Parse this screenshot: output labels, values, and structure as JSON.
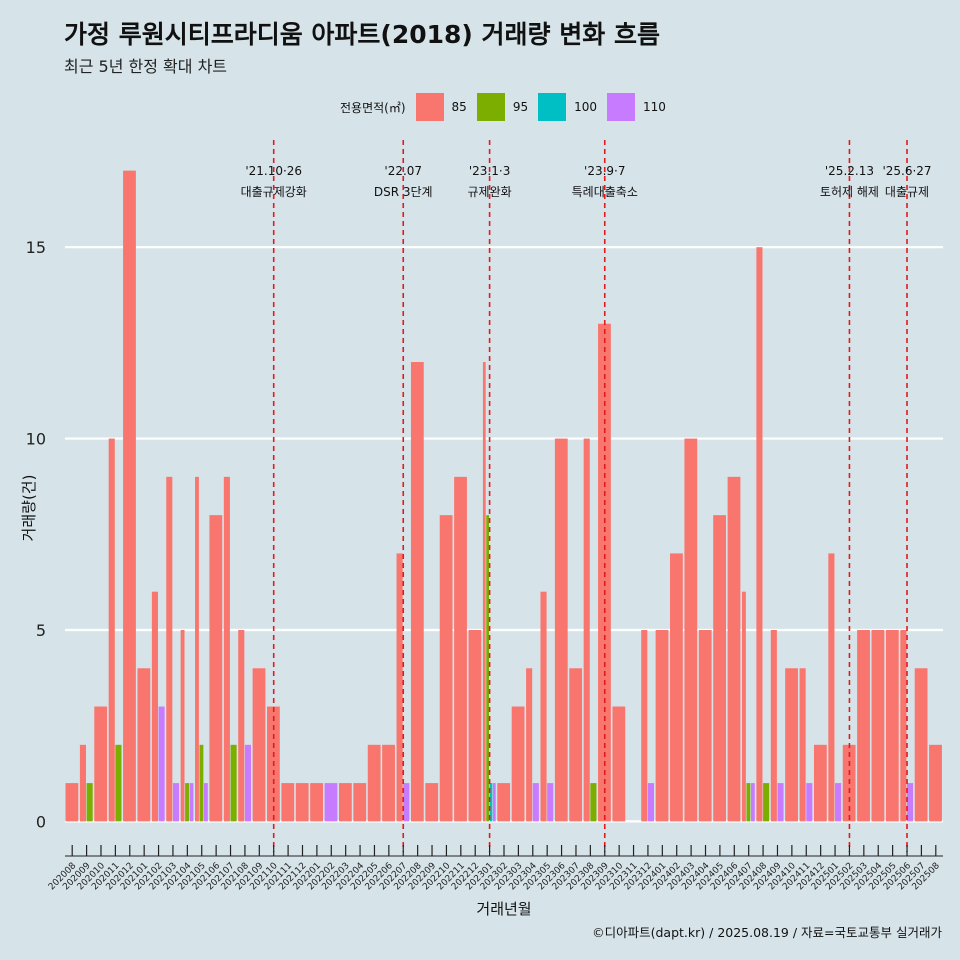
{
  "title": "가정 루원시티프라디움 아파트(2018) 거래량 변화 흐름",
  "subtitle": "최근 5년 한정 확대 차트",
  "caption": "©디아파트(dapt.kr) / 2025.08.19 / 자료=국토교통부 실거래가",
  "legend_title": "전용면적(㎡)",
  "chart_data": {
    "type": "bar",
    "xlabel": "거래년월",
    "ylabel": "거래량(건)",
    "ylim": [
      -0.8,
      17.8
    ],
    "yticks": [
      0,
      5,
      10,
      15
    ],
    "grid": true,
    "legend_position": "top",
    "series": [
      {
        "name": "85",
        "color": "#F8766D"
      },
      {
        "name": "95",
        "color": "#7CAE00"
      },
      {
        "name": "100",
        "color": "#00BFC4"
      },
      {
        "name": "110",
        "color": "#C77CFF"
      }
    ],
    "categories": [
      "202008",
      "202009",
      "202010",
      "202011",
      "202012",
      "202101",
      "202102",
      "202103",
      "202104",
      "202105",
      "202106",
      "202107",
      "202108",
      "202109",
      "202110",
      "202111",
      "202112",
      "202201",
      "202202",
      "202203",
      "202204",
      "202205",
      "202206",
      "202207",
      "202208",
      "202209",
      "202210",
      "202211",
      "202212",
      "202301",
      "202302",
      "202303",
      "202304",
      "202305",
      "202306",
      "202307",
      "202308",
      "202309",
      "202310",
      "202311",
      "202312",
      "202401",
      "202402",
      "202403",
      "202404",
      "202405",
      "202406",
      "202407",
      "202408",
      "202409",
      "202410",
      "202411",
      "202412",
      "202501",
      "202502",
      "202503",
      "202504",
      "202505",
      "202506",
      "202507",
      "202508"
    ],
    "data": [
      {
        "x": "202008",
        "values": {
          "85": 1
        }
      },
      {
        "x": "202009",
        "values": {
          "85": 2,
          "95": 1
        }
      },
      {
        "x": "202010",
        "values": {
          "85": 3
        }
      },
      {
        "x": "202011",
        "values": {
          "85": 10,
          "95": 2
        }
      },
      {
        "x": "202012",
        "values": {
          "85": 17
        }
      },
      {
        "x": "202101",
        "values": {
          "85": 4
        }
      },
      {
        "x": "202102",
        "values": {
          "85": 6,
          "110": 3
        }
      },
      {
        "x": "202103",
        "values": {
          "85": 9,
          "110": 1
        }
      },
      {
        "x": "202104",
        "values": {
          "85": 5,
          "95": 1,
          "110": 1
        }
      },
      {
        "x": "202105",
        "values": {
          "85": 9,
          "95": 2,
          "110": 1
        }
      },
      {
        "x": "202106",
        "values": {
          "85": 8
        }
      },
      {
        "x": "202107",
        "values": {
          "85": 9,
          "95": 2
        }
      },
      {
        "x": "202108",
        "values": {
          "85": 5,
          "110": 2
        }
      },
      {
        "x": "202109",
        "values": {
          "85": 4
        }
      },
      {
        "x": "202110",
        "values": {
          "85": 3
        }
      },
      {
        "x": "202111",
        "values": {
          "85": 1
        }
      },
      {
        "x": "202112",
        "values": {
          "85": 1
        }
      },
      {
        "x": "202201",
        "values": {
          "85": 1
        }
      },
      {
        "x": "202202",
        "values": {
          "110": 1
        }
      },
      {
        "x": "202203",
        "values": {
          "85": 1
        }
      },
      {
        "x": "202204",
        "values": {
          "85": 1
        }
      },
      {
        "x": "202205",
        "values": {
          "85": 2
        }
      },
      {
        "x": "202206",
        "values": {
          "85": 2
        }
      },
      {
        "x": "202207",
        "values": {
          "85": 7,
          "110": 1
        }
      },
      {
        "x": "202208",
        "values": {
          "85": 12
        }
      },
      {
        "x": "202209",
        "values": {
          "85": 1
        }
      },
      {
        "x": "202210",
        "values": {
          "85": 8
        }
      },
      {
        "x": "202211",
        "values": {
          "85": 9
        }
      },
      {
        "x": "202212",
        "values": {
          "85": 5
        }
      },
      {
        "x": "202301",
        "values": {
          "85": 12,
          "95": 8,
          "100": 1,
          "110": 1
        }
      },
      {
        "x": "202302",
        "values": {
          "85": 1
        }
      },
      {
        "x": "202303",
        "values": {
          "85": 3
        }
      },
      {
        "x": "202304",
        "values": {
          "85": 4,
          "110": 1
        }
      },
      {
        "x": "202305",
        "values": {
          "85": 6,
          "110": 1
        }
      },
      {
        "x": "202306",
        "values": {
          "85": 10
        }
      },
      {
        "x": "202307",
        "values": {
          "85": 4
        }
      },
      {
        "x": "202308",
        "values": {
          "85": 10,
          "95": 1
        }
      },
      {
        "x": "202309",
        "values": {
          "85": 13
        }
      },
      {
        "x": "202310",
        "values": {
          "85": 3
        }
      },
      {
        "x": "202311",
        "values": {}
      },
      {
        "x": "202312",
        "values": {
          "85": 5,
          "110": 1
        }
      },
      {
        "x": "202401",
        "values": {
          "85": 5
        }
      },
      {
        "x": "202402",
        "values": {
          "85": 7
        }
      },
      {
        "x": "202403",
        "values": {
          "85": 10
        }
      },
      {
        "x": "202404",
        "values": {
          "85": 5
        }
      },
      {
        "x": "202405",
        "values": {
          "85": 8
        }
      },
      {
        "x": "202406",
        "values": {
          "85": 9
        }
      },
      {
        "x": "202407",
        "values": {
          "85": 6,
          "95": 1,
          "110": 1
        }
      },
      {
        "x": "202408",
        "values": {
          "85": 15,
          "95": 1
        }
      },
      {
        "x": "202409",
        "values": {
          "85": 5,
          "110": 1
        }
      },
      {
        "x": "202410",
        "values": {
          "85": 4
        }
      },
      {
        "x": "202411",
        "values": {
          "85": 4,
          "110": 1
        }
      },
      {
        "x": "202412",
        "values": {
          "85": 2
        }
      },
      {
        "x": "202501",
        "values": {
          "85": 7,
          "110": 1
        }
      },
      {
        "x": "202502",
        "values": {
          "85": 2
        }
      },
      {
        "x": "202503",
        "values": {
          "85": 5
        }
      },
      {
        "x": "202504",
        "values": {
          "85": 5
        }
      },
      {
        "x": "202505",
        "values": {
          "85": 5
        }
      },
      {
        "x": "202506",
        "values": {
          "85": 5,
          "110": 1
        }
      },
      {
        "x": "202507",
        "values": {
          "85": 4
        }
      },
      {
        "x": "202508",
        "values": {
          "85": 2
        }
      }
    ],
    "events": [
      {
        "x": "202110",
        "date": "'21.10·26",
        "label": "대출규제강화"
      },
      {
        "x": "202207",
        "date": "'22.07",
        "label": "DSR 3단계"
      },
      {
        "x": "202301",
        "date": "'23.1·3",
        "label": "규제완화"
      },
      {
        "x": "202309",
        "date": "'23.9·7",
        "label": "특례대출축소"
      },
      {
        "x": "202502",
        "date": "'25.2.13",
        "label": "토허제 해제"
      },
      {
        "x": "202506",
        "date": "'25.6·27",
        "label": "대출규제"
      }
    ]
  }
}
